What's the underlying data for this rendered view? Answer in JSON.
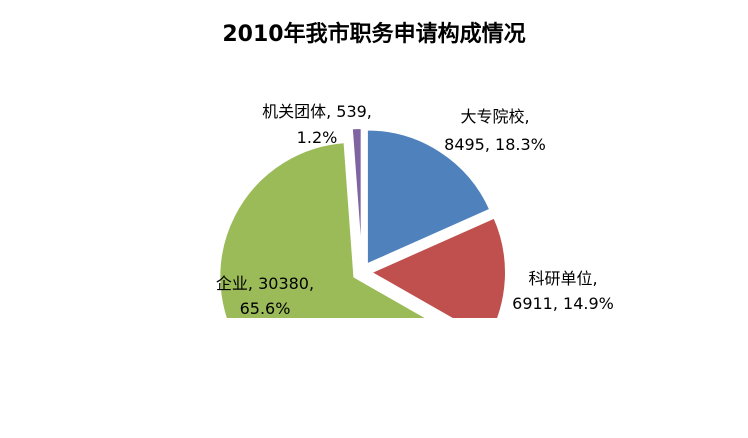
{
  "chart_data": {
    "type": "pie",
    "title": "2010年我市职务申请构成情况",
    "slices": [
      {
        "category": "大专院校",
        "value": 8495,
        "percent": "18.3%",
        "color": "#4F81BD",
        "label_line1": "大专院校,",
        "label_line2": "8495, 18.3%"
      },
      {
        "category": "科研单位",
        "value": 6911,
        "percent": "14.9%",
        "color": "#C0504D",
        "label_line1": "科研单位,",
        "label_line2": "6911, 14.9%"
      },
      {
        "category": "企业",
        "value": 30380,
        "percent": "65.6%",
        "color": "#9BBB59",
        "label_line1": "企业, 30380,",
        "label_line2": "65.6%"
      },
      {
        "category": "机关团体",
        "value": 539,
        "percent": "1.2%",
        "color": "#8064A2",
        "label_line1": "机关团体, 539,",
        "label_line2": "1.2%"
      }
    ],
    "legend": "none"
  }
}
